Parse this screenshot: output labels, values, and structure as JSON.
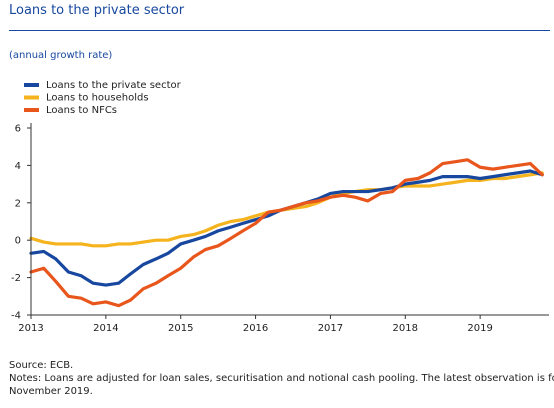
{
  "header": {
    "title": "Loans to the private sector",
    "subtitle": "(annual growth rate)"
  },
  "chart_data": {
    "type": "line",
    "title": "Loans to the private sector",
    "subtitle": "(annual growth rate)",
    "xlabel": "",
    "ylabel": "",
    "xlim": [
      2013,
      2019.92
    ],
    "ylim": [
      -4,
      6
    ],
    "x_ticks": [
      "2013",
      "2014",
      "2015",
      "2016",
      "2017",
      "2018",
      "2019"
    ],
    "y_ticks": [
      "-4",
      "-2",
      "0",
      "2",
      "4",
      "6"
    ],
    "grid": false,
    "legend": "top-left",
    "colors": {
      "private": "#17479e",
      "households": "#f5b31d",
      "nfcs": "#e8561c",
      "axis": "#333333",
      "text": "#1f1f1f",
      "title": "#17479e"
    },
    "series": [
      {
        "name": "Loans to the private sector",
        "points": [
          [
            2013.0,
            -0.7
          ],
          [
            2013.17,
            -0.6
          ],
          [
            2013.33,
            -1.0
          ],
          [
            2013.5,
            -1.7
          ],
          [
            2013.67,
            -1.9
          ],
          [
            2013.83,
            -2.3
          ],
          [
            2014.0,
            -2.4
          ],
          [
            2014.17,
            -2.3
          ],
          [
            2014.33,
            -1.8
          ],
          [
            2014.5,
            -1.3
          ],
          [
            2014.67,
            -1.0
          ],
          [
            2014.83,
            -0.7
          ],
          [
            2015.0,
            -0.2
          ],
          [
            2015.17,
            0.0
          ],
          [
            2015.33,
            0.2
          ],
          [
            2015.5,
            0.5
          ],
          [
            2015.67,
            0.7
          ],
          [
            2015.83,
            0.9
          ],
          [
            2016.0,
            1.1
          ],
          [
            2016.17,
            1.3
          ],
          [
            2016.33,
            1.6
          ],
          [
            2016.5,
            1.8
          ],
          [
            2016.67,
            2.0
          ],
          [
            2016.83,
            2.2
          ],
          [
            2017.0,
            2.5
          ],
          [
            2017.17,
            2.6
          ],
          [
            2017.33,
            2.6
          ],
          [
            2017.5,
            2.6
          ],
          [
            2017.67,
            2.7
          ],
          [
            2017.83,
            2.8
          ],
          [
            2018.0,
            3.0
          ],
          [
            2018.17,
            3.1
          ],
          [
            2018.33,
            3.2
          ],
          [
            2018.5,
            3.4
          ],
          [
            2018.67,
            3.4
          ],
          [
            2018.83,
            3.4
          ],
          [
            2019.0,
            3.3
          ],
          [
            2019.17,
            3.4
          ],
          [
            2019.33,
            3.5
          ],
          [
            2019.5,
            3.6
          ],
          [
            2019.67,
            3.7
          ],
          [
            2019.83,
            3.5
          ]
        ]
      },
      {
        "name": "Loans to households",
        "points": [
          [
            2013.0,
            0.1
          ],
          [
            2013.17,
            -0.1
          ],
          [
            2013.33,
            -0.2
          ],
          [
            2013.5,
            -0.2
          ],
          [
            2013.67,
            -0.2
          ],
          [
            2013.83,
            -0.3
          ],
          [
            2014.0,
            -0.3
          ],
          [
            2014.17,
            -0.2
          ],
          [
            2014.33,
            -0.2
          ],
          [
            2014.5,
            -0.1
          ],
          [
            2014.67,
            0.0
          ],
          [
            2014.83,
            0.0
          ],
          [
            2015.0,
            0.2
          ],
          [
            2015.17,
            0.3
          ],
          [
            2015.33,
            0.5
          ],
          [
            2015.5,
            0.8
          ],
          [
            2015.67,
            1.0
          ],
          [
            2015.83,
            1.1
          ],
          [
            2016.0,
            1.3
          ],
          [
            2016.17,
            1.5
          ],
          [
            2016.33,
            1.6
          ],
          [
            2016.5,
            1.7
          ],
          [
            2016.67,
            1.8
          ],
          [
            2016.83,
            2.0
          ],
          [
            2017.0,
            2.3
          ],
          [
            2017.17,
            2.5
          ],
          [
            2017.33,
            2.6
          ],
          [
            2017.5,
            2.7
          ],
          [
            2017.67,
            2.7
          ],
          [
            2017.83,
            2.8
          ],
          [
            2018.0,
            2.9
          ],
          [
            2018.17,
            2.9
          ],
          [
            2018.33,
            2.9
          ],
          [
            2018.5,
            3.0
          ],
          [
            2018.67,
            3.1
          ],
          [
            2018.83,
            3.2
          ],
          [
            2019.0,
            3.2
          ],
          [
            2019.17,
            3.3
          ],
          [
            2019.33,
            3.3
          ],
          [
            2019.5,
            3.4
          ],
          [
            2019.67,
            3.5
          ],
          [
            2019.83,
            3.6
          ]
        ]
      },
      {
        "name": "Loans to NFCs",
        "points": [
          [
            2013.0,
            -1.7
          ],
          [
            2013.17,
            -1.5
          ],
          [
            2013.33,
            -2.2
          ],
          [
            2013.5,
            -3.0
          ],
          [
            2013.67,
            -3.1
          ],
          [
            2013.83,
            -3.4
          ],
          [
            2014.0,
            -3.3
          ],
          [
            2014.17,
            -3.5
          ],
          [
            2014.33,
            -3.2
          ],
          [
            2014.5,
            -2.6
          ],
          [
            2014.67,
            -2.3
          ],
          [
            2014.83,
            -1.9
          ],
          [
            2015.0,
            -1.5
          ],
          [
            2015.17,
            -0.9
          ],
          [
            2015.33,
            -0.5
          ],
          [
            2015.5,
            -0.3
          ],
          [
            2015.67,
            0.1
          ],
          [
            2015.83,
            0.5
          ],
          [
            2016.0,
            0.9
          ],
          [
            2016.17,
            1.5
          ],
          [
            2016.33,
            1.6
          ],
          [
            2016.5,
            1.8
          ],
          [
            2016.67,
            2.0
          ],
          [
            2016.83,
            2.1
          ],
          [
            2017.0,
            2.3
          ],
          [
            2017.17,
            2.4
          ],
          [
            2017.33,
            2.3
          ],
          [
            2017.5,
            2.1
          ],
          [
            2017.67,
            2.5
          ],
          [
            2017.83,
            2.6
          ],
          [
            2018.0,
            3.2
          ],
          [
            2018.17,
            3.3
          ],
          [
            2018.33,
            3.6
          ],
          [
            2018.5,
            4.1
          ],
          [
            2018.67,
            4.2
          ],
          [
            2018.83,
            4.3
          ],
          [
            2019.0,
            3.9
          ],
          [
            2019.17,
            3.8
          ],
          [
            2019.33,
            3.9
          ],
          [
            2019.5,
            4.0
          ],
          [
            2019.67,
            4.1
          ],
          [
            2019.83,
            3.5
          ]
        ]
      }
    ]
  },
  "footer": {
    "source": "Source: ECB.",
    "notes_line1": "Notes: Loans are adjusted for loan sales, securitisation and notional cash pooling. The latest observation is for",
    "notes_line2": "November 2019."
  }
}
